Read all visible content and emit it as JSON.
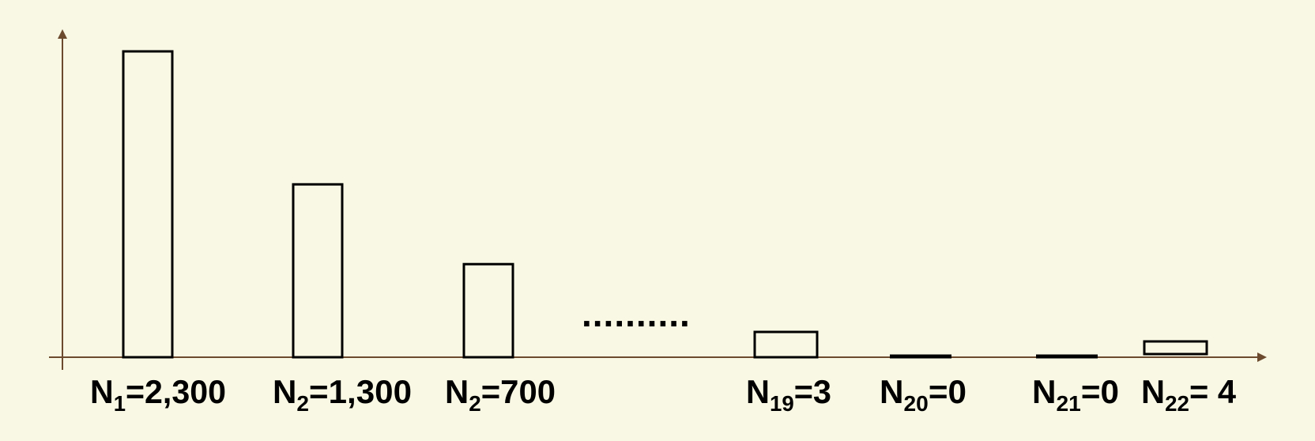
{
  "colors": {
    "background": "#f8f8e4",
    "axis": "#6b4a2e",
    "bar_stroke": "#000000",
    "bar_fill": "none"
  },
  "chart_data": {
    "type": "bar",
    "title": "",
    "xlabel": "",
    "ylabel": "",
    "categories": [
      {
        "name": "N",
        "sub": "1",
        "text": "=2,300"
      },
      {
        "name": "N",
        "sub": "2",
        "text": "=1,300"
      },
      {
        "name": "N",
        "sub": "2",
        "text": "=700"
      },
      {
        "name": "N",
        "sub": "19",
        "text": "=3"
      },
      {
        "name": "N",
        "sub": "20",
        "text": "=0"
      },
      {
        "name": "N",
        "sub": "21",
        "text": "=0"
      },
      {
        "name": "N",
        "sub": "22",
        "text": "= 4"
      }
    ],
    "values": [
      2300,
      1300,
      700,
      3,
      0,
      0,
      4
    ],
    "gap_marker": "..........",
    "grid": false,
    "legend": "none",
    "y_ticks": false
  }
}
